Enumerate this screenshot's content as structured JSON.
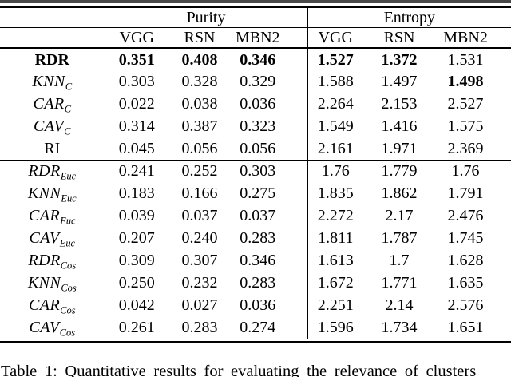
{
  "table": {
    "groups": [
      {
        "label": "Purity",
        "cols": [
          "VGG",
          "RSN",
          "MBN2"
        ]
      },
      {
        "label": "Entropy",
        "cols": [
          "VGG",
          "RSN",
          "MBN2"
        ]
      }
    ],
    "rows": [
      {
        "base": "RDR",
        "sub": "",
        "style": "bold",
        "values": [
          "0.351",
          "0.408",
          "0.346",
          "1.527",
          "1.372",
          "1.531"
        ],
        "bold": [
          true,
          true,
          true,
          true,
          true,
          false
        ],
        "rule_below": false
      },
      {
        "base": "KNN",
        "sub": "C",
        "style": "math",
        "values": [
          "0.303",
          "0.328",
          "0.329",
          "1.588",
          "1.497",
          "1.498"
        ],
        "bold": [
          false,
          false,
          false,
          false,
          false,
          true
        ],
        "rule_below": false
      },
      {
        "base": "CAR",
        "sub": "C",
        "style": "math",
        "values": [
          "0.022",
          "0.038",
          "0.036",
          "2.264",
          "2.153",
          "2.527"
        ],
        "bold": [
          false,
          false,
          false,
          false,
          false,
          false
        ],
        "rule_below": false
      },
      {
        "base": "CAV",
        "sub": "C",
        "style": "math",
        "values": [
          "0.314",
          "0.387",
          "0.323",
          "1.549",
          "1.416",
          "1.575"
        ],
        "bold": [
          false,
          false,
          false,
          false,
          false,
          false
        ],
        "rule_below": false
      },
      {
        "base": "RI",
        "sub": "",
        "style": "roman",
        "values": [
          "0.045",
          "0.056",
          "0.056",
          "2.161",
          "1.971",
          "2.369"
        ],
        "bold": [
          false,
          false,
          false,
          false,
          false,
          false
        ],
        "rule_below": true
      },
      {
        "base": "RDR",
        "sub": "Euc",
        "style": "math",
        "values": [
          "0.241",
          "0.252",
          "0.303",
          "1.76",
          "1.779",
          "1.76"
        ],
        "bold": [
          false,
          false,
          false,
          false,
          false,
          false
        ],
        "rule_below": false
      },
      {
        "base": "KNN",
        "sub": "Euc",
        "style": "math",
        "values": [
          "0.183",
          "0.166",
          "0.275",
          "1.835",
          "1.862",
          "1.791"
        ],
        "bold": [
          false,
          false,
          false,
          false,
          false,
          false
        ],
        "rule_below": false
      },
      {
        "base": "CAR",
        "sub": "Euc",
        "style": "math",
        "values": [
          "0.039",
          "0.037",
          "0.037",
          "2.272",
          "2.17",
          "2.476"
        ],
        "bold": [
          false,
          false,
          false,
          false,
          false,
          false
        ],
        "rule_below": false
      },
      {
        "base": "CAV",
        "sub": "Euc",
        "style": "math",
        "values": [
          "0.207",
          "0.240",
          "0.283",
          "1.811",
          "1.787",
          "1.745"
        ],
        "bold": [
          false,
          false,
          false,
          false,
          false,
          false
        ],
        "rule_below": false
      },
      {
        "base": "RDR",
        "sub": "Cos",
        "style": "math",
        "values": [
          "0.309",
          "0.307",
          "0.346",
          "1.613",
          "1.7",
          "1.628"
        ],
        "bold": [
          false,
          false,
          false,
          false,
          false,
          false
        ],
        "rule_below": false
      },
      {
        "base": "KNN",
        "sub": "Cos",
        "style": "math",
        "values": [
          "0.250",
          "0.232",
          "0.283",
          "1.672",
          "1.771",
          "1.635"
        ],
        "bold": [
          false,
          false,
          false,
          false,
          false,
          false
        ],
        "rule_below": false
      },
      {
        "base": "CAR",
        "sub": "Cos",
        "style": "math",
        "values": [
          "0.042",
          "0.027",
          "0.036",
          "2.251",
          "2.14",
          "2.576"
        ],
        "bold": [
          false,
          false,
          false,
          false,
          false,
          false
        ],
        "rule_below": false
      },
      {
        "base": "CAV",
        "sub": "Cos",
        "style": "math",
        "values": [
          "0.261",
          "0.283",
          "0.274",
          "1.596",
          "1.734",
          "1.651"
        ],
        "bold": [
          false,
          false,
          false,
          false,
          false,
          false
        ],
        "rule_below": false
      }
    ]
  },
  "caption": {
    "visible_text": "Table 1: Quantitative results for evaluating the relevance of clusters"
  }
}
